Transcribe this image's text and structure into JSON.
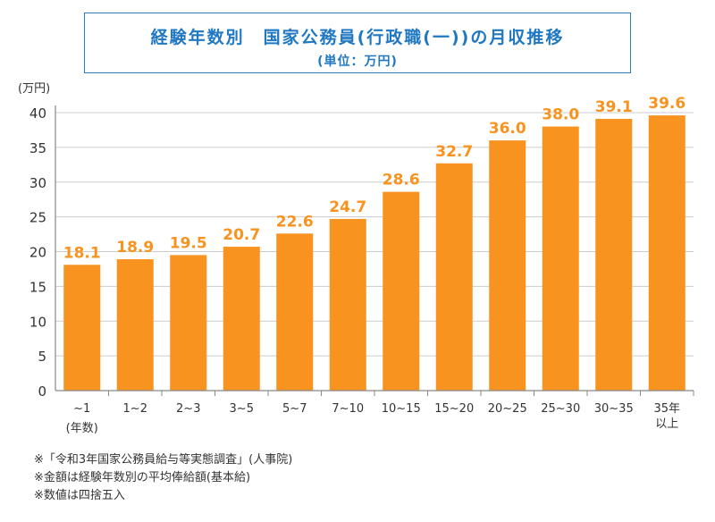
{
  "chart_data": {
    "type": "bar",
    "title": "経験年数別　国家公務員(行政職(一))の月収推移",
    "subtitle": "(単位：万円)",
    "ylabel": "(万円)",
    "xlabel": "(年数)",
    "categories": [
      "~1",
      "1~2",
      "2~3",
      "3~5",
      "5~7",
      "7~10",
      "10~15",
      "15~20",
      "20~25",
      "25~30",
      "30~35",
      "35年以上"
    ],
    "values": [
      18.1,
      18.9,
      19.5,
      20.7,
      22.6,
      24.7,
      28.6,
      32.7,
      36.0,
      38.0,
      39.1,
      39.6
    ],
    "value_labels": [
      "18.1",
      "18.9",
      "19.5",
      "20.7",
      "22.6",
      "24.7",
      "28.6",
      "32.7",
      "36.0",
      "38.0",
      "39.1",
      "39.6"
    ],
    "ylim": [
      0,
      40
    ],
    "yticks": [
      0,
      5,
      10,
      15,
      20,
      25,
      30,
      35,
      40
    ],
    "grid": true,
    "legend": "none",
    "colors": {
      "bar": "#f7931e",
      "label": "#f7931e",
      "grid": "#cccccc",
      "axis": "#888888",
      "title": "#1f78c1"
    }
  },
  "notes": [
    "※「令和3年国家公務員給与等実態調査」(人事院)",
    "※金額は経験年数別の平均俸給額(基本給)",
    "※数値は四捨五入"
  ]
}
